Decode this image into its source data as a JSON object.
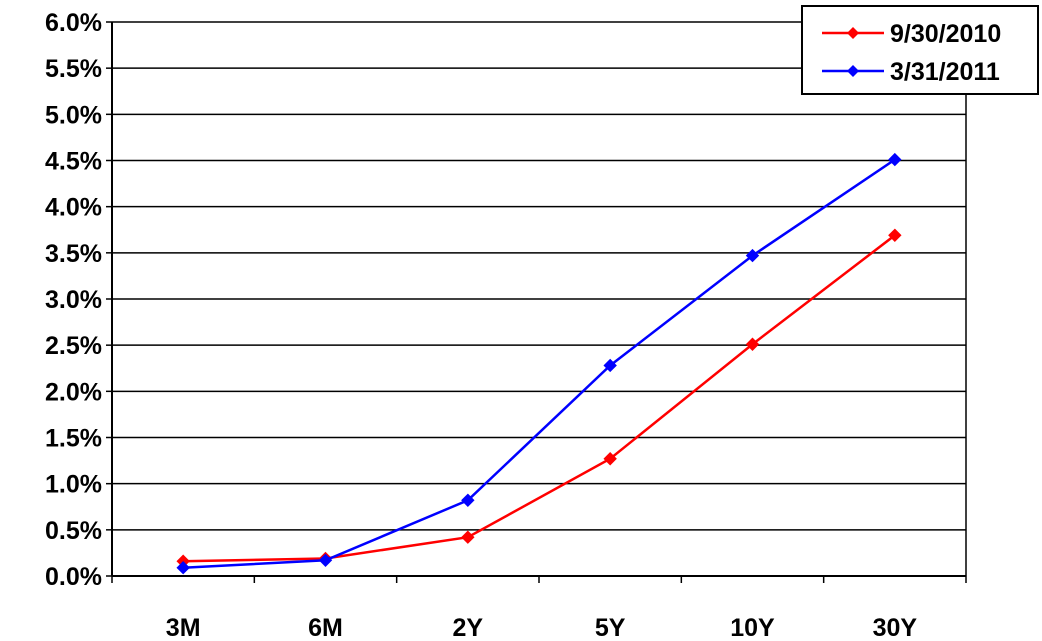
{
  "chart_data": {
    "type": "line",
    "categories": [
      "3M",
      "6M",
      "2Y",
      "5Y",
      "10Y",
      "30Y"
    ],
    "y_tick_labels": [
      "0.0%",
      "0.5%",
      "1.0%",
      "1.5%",
      "2.0%",
      "2.5%",
      "3.0%",
      "3.5%",
      "4.0%",
      "4.5%",
      "5.0%",
      "5.5%",
      "6.0%"
    ],
    "ylim": [
      0,
      6
    ],
    "y_unit": "%",
    "grid": true,
    "legend_position": "top-right",
    "series": [
      {
        "name": "9/30/2010",
        "color": "#ff0000",
        "values": [
          0.16,
          0.19,
          0.42,
          1.27,
          2.51,
          3.69
        ]
      },
      {
        "name": "3/31/2011",
        "color": "#0000ff",
        "values": [
          0.09,
          0.17,
          0.82,
          2.28,
          3.47,
          4.51
        ]
      }
    ],
    "marker": "diamond",
    "title": "",
    "xlabel": "",
    "ylabel": ""
  }
}
